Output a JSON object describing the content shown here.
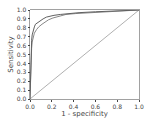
{
  "chart_data": {
    "type": "line",
    "xlabel": "1 - specificity",
    "ylabel": "Sensitivity",
    "xlim": [
      0.0,
      1.0
    ],
    "ylim": [
      0.0,
      1.0
    ],
    "xticks": [
      {
        "value": 0.0,
        "label": "0.0"
      },
      0.2,
      0.4,
      0.6,
      0.8,
      {
        "value": 1.0,
        "label": "1.0"
      }
    ],
    "yticks": [
      {
        "value": 0.0,
        "label": "0.0"
      },
      0.1,
      0.2,
      0.3,
      0.4,
      0.5,
      0.6,
      0.7,
      0.8,
      0.9,
      {
        "value": 1.0,
        "label": "1.0"
      }
    ],
    "grid": false,
    "series": [
      {
        "color": "#b0b0b0",
        "x": [
          0,
          1
        ],
        "values": [
          0,
          1
        ]
      },
      {
        "color": "#888888",
        "x": [
          0.0,
          0.005,
          0.01,
          0.015,
          0.02,
          0.03,
          0.04,
          0.06,
          0.08,
          0.11,
          0.14,
          0.17,
          0.21,
          0.26,
          0.33,
          0.42,
          0.55,
          0.7,
          1.0
        ],
        "values": [
          0.0,
          0.3,
          0.46,
          0.57,
          0.64,
          0.7,
          0.74,
          0.78,
          0.81,
          0.84,
          0.87,
          0.89,
          0.91,
          0.93,
          0.95,
          0.96,
          0.97,
          0.98,
          1.0
        ]
      },
      {
        "color": "#606060",
        "x": [
          0.0,
          0.005,
          0.01,
          0.015,
          0.02,
          0.03,
          0.04,
          0.05,
          0.07,
          0.09,
          0.12,
          0.15,
          0.18,
          0.22,
          0.28,
          0.35,
          0.45,
          0.6,
          0.75,
          1.0
        ],
        "values": [
          0.0,
          0.38,
          0.55,
          0.66,
          0.72,
          0.78,
          0.81,
          0.84,
          0.86,
          0.88,
          0.9,
          0.92,
          0.93,
          0.94,
          0.95,
          0.96,
          0.97,
          0.98,
          0.99,
          1.0
        ]
      }
    ]
  }
}
